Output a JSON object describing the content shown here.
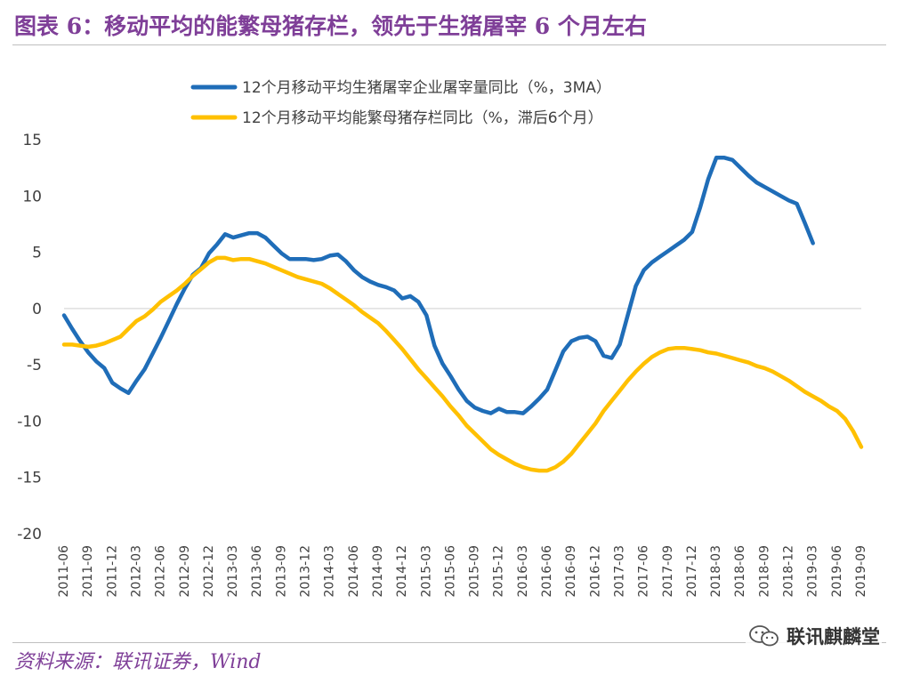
{
  "header": {
    "title": "图表 6：移动平均的能繁母猪存栏，领先于生猪屠宰 6 个月左右"
  },
  "footer": {
    "source": "资料来源：联讯证券，Wind",
    "watermark": "联讯麒麟堂",
    "watermark_icon": "wechat-icon"
  },
  "colors": {
    "title": "#7f3f98",
    "series_1": "#1f6db8",
    "series_2": "#ffc000",
    "zero_line": "#d9d9d9"
  },
  "chart_data": {
    "type": "line",
    "title": "",
    "xlabel": "",
    "ylabel": "",
    "ylim": [
      -20,
      15
    ],
    "yticks": [
      15,
      10,
      5,
      0,
      -5,
      -10,
      -15,
      -20
    ],
    "ytick_labels": [
      "15",
      "10",
      "5",
      "0",
      "-5",
      "-10",
      "-15",
      "-20"
    ],
    "x_start": "2011-06",
    "x_end": "2019-09",
    "xtick_labels": [
      "2011-06",
      "2011-09",
      "2011-12",
      "2012-03",
      "2012-06",
      "2012-09",
      "2012-12",
      "2013-03",
      "2013-06",
      "2013-09",
      "2013-12",
      "2014-03",
      "2014-06",
      "2014-09",
      "2014-12",
      "2015-03",
      "2015-06",
      "2015-09",
      "2015-12",
      "2016-03",
      "2016-06",
      "2016-09",
      "2016-12",
      "2017-03",
      "2017-06",
      "2017-09",
      "2017-12",
      "2018-03",
      "2018-06",
      "2018-09",
      "2018-12",
      "2019-03",
      "2019-06",
      "2019-09"
    ],
    "grid": false,
    "zero_line": true,
    "legend_position": "top-center",
    "series": [
      {
        "name": "12个月移动平均生猪屠宰企业屠宰量同比（%，3MA）",
        "color": "#1f6db8",
        "points": [
          [
            "2011-06",
            -0.6
          ],
          [
            "2011-07",
            -1.8
          ],
          [
            "2011-08",
            -2.9
          ],
          [
            "2011-09",
            -3.9
          ],
          [
            "2011-10",
            -4.7
          ],
          [
            "2011-11",
            -5.3
          ],
          [
            "2011-12",
            -6.6
          ],
          [
            "2012-01",
            -7.1
          ],
          [
            "2012-02",
            -7.5
          ],
          [
            "2012-03",
            -6.4
          ],
          [
            "2012-04",
            -5.4
          ],
          [
            "2012-05",
            -4.0
          ],
          [
            "2012-06",
            -2.6
          ],
          [
            "2012-07",
            -1.1
          ],
          [
            "2012-08",
            0.4
          ],
          [
            "2012-09",
            1.8
          ],
          [
            "2012-10",
            3.0
          ],
          [
            "2012-11",
            3.6
          ],
          [
            "2012-12",
            4.9
          ],
          [
            "2013-01",
            5.7
          ],
          [
            "2013-02",
            6.6
          ],
          [
            "2013-03",
            6.3
          ],
          [
            "2013-04",
            6.5
          ],
          [
            "2013-05",
            6.7
          ],
          [
            "2013-06",
            6.7
          ],
          [
            "2013-07",
            6.3
          ],
          [
            "2013-08",
            5.6
          ],
          [
            "2013-09",
            4.9
          ],
          [
            "2013-10",
            4.4
          ],
          [
            "2013-11",
            4.4
          ],
          [
            "2013-12",
            4.4
          ],
          [
            "2014-01",
            4.3
          ],
          [
            "2014-02",
            4.4
          ],
          [
            "2014-03",
            4.7
          ],
          [
            "2014-04",
            4.8
          ],
          [
            "2014-05",
            4.2
          ],
          [
            "2014-06",
            3.4
          ],
          [
            "2014-07",
            2.8
          ],
          [
            "2014-08",
            2.4
          ],
          [
            "2014-09",
            2.1
          ],
          [
            "2014-10",
            1.9
          ],
          [
            "2014-11",
            1.6
          ],
          [
            "2014-12",
            0.9
          ],
          [
            "2015-01",
            1.1
          ],
          [
            "2015-02",
            0.6
          ],
          [
            "2015-03",
            -0.6
          ],
          [
            "2015-04",
            -3.3
          ],
          [
            "2015-05",
            -4.9
          ],
          [
            "2015-06",
            -6.0
          ],
          [
            "2015-07",
            -7.2
          ],
          [
            "2015-08",
            -8.2
          ],
          [
            "2015-09",
            -8.8
          ],
          [
            "2015-10",
            -9.1
          ],
          [
            "2015-11",
            -9.3
          ],
          [
            "2015-12",
            -8.9
          ],
          [
            "2016-01",
            -9.2
          ],
          [
            "2016-02",
            -9.2
          ],
          [
            "2016-03",
            -9.3
          ],
          [
            "2016-04",
            -8.7
          ],
          [
            "2016-05",
            -8.0
          ],
          [
            "2016-06",
            -7.2
          ],
          [
            "2016-07",
            -5.5
          ],
          [
            "2016-08",
            -3.8
          ],
          [
            "2016-09",
            -2.9
          ],
          [
            "2016-10",
            -2.6
          ],
          [
            "2016-11",
            -2.5
          ],
          [
            "2016-12",
            -2.9
          ],
          [
            "2017-01",
            -4.2
          ],
          [
            "2017-02",
            -4.4
          ],
          [
            "2017-03",
            -3.2
          ],
          [
            "2017-04",
            -0.6
          ],
          [
            "2017-05",
            2.0
          ],
          [
            "2017-06",
            3.4
          ],
          [
            "2017-07",
            4.1
          ],
          [
            "2017-08",
            4.6
          ],
          [
            "2017-09",
            5.1
          ],
          [
            "2017-10",
            5.6
          ],
          [
            "2017-11",
            6.1
          ],
          [
            "2017-12",
            6.8
          ],
          [
            "2018-01",
            9.0
          ],
          [
            "2018-02",
            11.5
          ],
          [
            "2018-03",
            13.4
          ],
          [
            "2018-04",
            13.4
          ],
          [
            "2018-05",
            13.2
          ],
          [
            "2018-06",
            12.5
          ],
          [
            "2018-07",
            11.8
          ],
          [
            "2018-08",
            11.2
          ],
          [
            "2018-09",
            10.8
          ],
          [
            "2018-10",
            10.4
          ],
          [
            "2018-11",
            10.0
          ],
          [
            "2018-12",
            9.6
          ],
          [
            "2019-01",
            9.3
          ],
          [
            "2019-02",
            7.6
          ],
          [
            "2019-03",
            5.8
          ]
        ]
      },
      {
        "name": "12个月移动平均能繁母猪存栏同比（%，滞后6个月）",
        "color": "#ffc000",
        "points": [
          [
            "2011-06",
            -3.2
          ],
          [
            "2011-07",
            -3.2
          ],
          [
            "2011-08",
            -3.3
          ],
          [
            "2011-09",
            -3.4
          ],
          [
            "2011-10",
            -3.3
          ],
          [
            "2011-11",
            -3.1
          ],
          [
            "2011-12",
            -2.8
          ],
          [
            "2012-01",
            -2.5
          ],
          [
            "2012-02",
            -1.8
          ],
          [
            "2012-03",
            -1.1
          ],
          [
            "2012-04",
            -0.7
          ],
          [
            "2012-05",
            -0.1
          ],
          [
            "2012-06",
            0.6
          ],
          [
            "2012-07",
            1.1
          ],
          [
            "2012-08",
            1.6
          ],
          [
            "2012-09",
            2.2
          ],
          [
            "2012-10",
            2.9
          ],
          [
            "2012-11",
            3.5
          ],
          [
            "2012-12",
            4.1
          ],
          [
            "2013-01",
            4.5
          ],
          [
            "2013-02",
            4.5
          ],
          [
            "2013-03",
            4.3
          ],
          [
            "2013-04",
            4.4
          ],
          [
            "2013-05",
            4.4
          ],
          [
            "2013-06",
            4.2
          ],
          [
            "2013-07",
            4.0
          ],
          [
            "2013-08",
            3.7
          ],
          [
            "2013-09",
            3.4
          ],
          [
            "2013-10",
            3.1
          ],
          [
            "2013-11",
            2.8
          ],
          [
            "2013-12",
            2.6
          ],
          [
            "2014-01",
            2.4
          ],
          [
            "2014-02",
            2.2
          ],
          [
            "2014-03",
            1.8
          ],
          [
            "2014-04",
            1.3
          ],
          [
            "2014-05",
            0.8
          ],
          [
            "2014-06",
            0.3
          ],
          [
            "2014-07",
            -0.3
          ],
          [
            "2014-08",
            -0.8
          ],
          [
            "2014-09",
            -1.3
          ],
          [
            "2014-10",
            -2.0
          ],
          [
            "2014-11",
            -2.8
          ],
          [
            "2014-12",
            -3.6
          ],
          [
            "2015-01",
            -4.5
          ],
          [
            "2015-02",
            -5.4
          ],
          [
            "2015-03",
            -6.2
          ],
          [
            "2015-04",
            -7.0
          ],
          [
            "2015-05",
            -7.8
          ],
          [
            "2015-06",
            -8.7
          ],
          [
            "2015-07",
            -9.5
          ],
          [
            "2015-08",
            -10.4
          ],
          [
            "2015-09",
            -11.1
          ],
          [
            "2015-10",
            -11.8
          ],
          [
            "2015-11",
            -12.5
          ],
          [
            "2015-12",
            -13.0
          ],
          [
            "2016-01",
            -13.4
          ],
          [
            "2016-02",
            -13.8
          ],
          [
            "2016-03",
            -14.1
          ],
          [
            "2016-04",
            -14.3
          ],
          [
            "2016-05",
            -14.4
          ],
          [
            "2016-06",
            -14.4
          ],
          [
            "2016-07",
            -14.1
          ],
          [
            "2016-08",
            -13.6
          ],
          [
            "2016-09",
            -12.9
          ],
          [
            "2016-10",
            -12.0
          ],
          [
            "2016-11",
            -11.1
          ],
          [
            "2016-12",
            -10.2
          ],
          [
            "2017-01",
            -9.1
          ],
          [
            "2017-02",
            -8.2
          ],
          [
            "2017-03",
            -7.3
          ],
          [
            "2017-04",
            -6.4
          ],
          [
            "2017-05",
            -5.6
          ],
          [
            "2017-06",
            -4.9
          ],
          [
            "2017-07",
            -4.3
          ],
          [
            "2017-08",
            -3.9
          ],
          [
            "2017-09",
            -3.6
          ],
          [
            "2017-10",
            -3.5
          ],
          [
            "2017-11",
            -3.5
          ],
          [
            "2017-12",
            -3.6
          ],
          [
            "2018-01",
            -3.7
          ],
          [
            "2018-02",
            -3.9
          ],
          [
            "2018-03",
            -4.0
          ],
          [
            "2018-04",
            -4.2
          ],
          [
            "2018-05",
            -4.4
          ],
          [
            "2018-06",
            -4.6
          ],
          [
            "2018-07",
            -4.8
          ],
          [
            "2018-08",
            -5.1
          ],
          [
            "2018-09",
            -5.3
          ],
          [
            "2018-10",
            -5.6
          ],
          [
            "2018-11",
            -6.0
          ],
          [
            "2018-12",
            -6.4
          ],
          [
            "2019-01",
            -6.9
          ],
          [
            "2019-02",
            -7.4
          ],
          [
            "2019-03",
            -7.8
          ],
          [
            "2019-04",
            -8.2
          ],
          [
            "2019-05",
            -8.7
          ],
          [
            "2019-06",
            -9.1
          ],
          [
            "2019-07",
            -9.8
          ],
          [
            "2019-08",
            -10.9
          ],
          [
            "2019-09",
            -12.3
          ]
        ]
      }
    ]
  }
}
